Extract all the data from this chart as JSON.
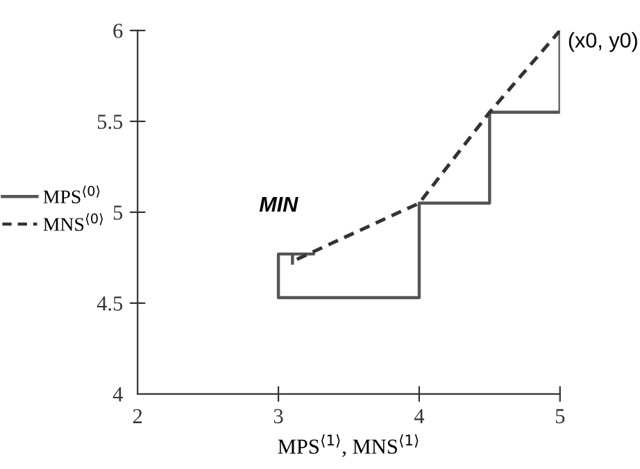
{
  "chart_data": {
    "type": "line",
    "xlabel": "MPS$^{⟨1⟩}$, MNS$^{⟨1⟩}$",
    "xlim": [
      2,
      5
    ],
    "xticks": [
      2,
      3,
      4,
      5
    ],
    "ylim": [
      4,
      6
    ],
    "yticks": [
      4,
      4.5,
      5,
      5.5,
      6
    ],
    "grid": false,
    "legend": "left",
    "marker": "none",
    "series": [
      {
        "name": "MPS$^{⟨0⟩}$",
        "color": "#555555",
        "line_style": "solid",
        "x": [
          5,
          5,
          4.5,
          4.5,
          4,
          4,
          3,
          3,
          3.25,
          3.1,
          3.1
        ],
        "values": [
          6,
          5.55,
          5.55,
          5.05,
          5.05,
          4.53,
          4.53,
          4.77,
          4.77,
          4.77,
          4.72
        ]
      },
      {
        "name": "MNS$^{⟨0⟩}$",
        "color": "#333333",
        "line_style": "dashed",
        "x": [
          5,
          4.5,
          4,
          3.1
        ],
        "values": [
          6,
          5.55,
          5.05,
          4.73
        ]
      }
    ],
    "annotations": [
      {
        "text": "MIN",
        "x": 3,
        "y": 4.77
      },
      {
        "text": "(x0, y0)",
        "x": 5,
        "y": 6
      }
    ]
  }
}
